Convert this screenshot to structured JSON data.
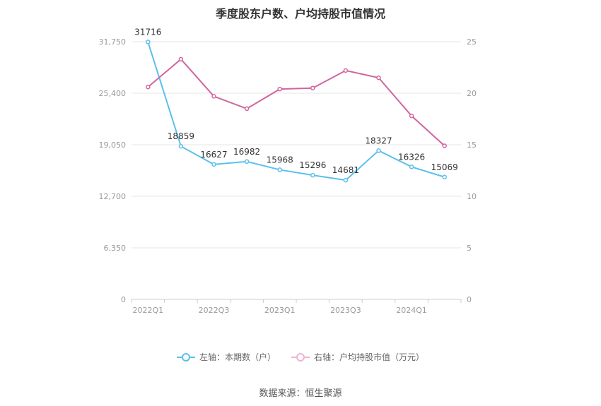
{
  "title": "季度股东户数、户均持股市值情况",
  "source": "数据来源：恒生聚源",
  "chart_data": {
    "type": "line",
    "categories": [
      "2022Q1",
      "2022Q2",
      "2022Q3",
      "2022Q4",
      "2023Q1",
      "2023Q2",
      "2023Q3",
      "2023Q4",
      "2024Q1",
      "2024Q2"
    ],
    "x_tick_labels": [
      "2022Q1",
      "",
      "2022Q3",
      "",
      "2023Q1",
      "",
      "2023Q3",
      "",
      "2024Q1",
      ""
    ],
    "left_axis": {
      "ylim": [
        0,
        31750
      ],
      "ticks": [
        0,
        6350,
        12700,
        19050,
        25400,
        31750
      ],
      "tick_labels": [
        "0",
        "6,350",
        "12,700",
        "19,050",
        "25,400",
        "31,750"
      ]
    },
    "right_axis": {
      "ylim": [
        0,
        25
      ],
      "ticks": [
        0,
        5,
        10,
        15,
        20,
        25
      ],
      "tick_labels": [
        "0",
        "5",
        "10",
        "15",
        "20",
        "25"
      ]
    },
    "series": [
      {
        "name": "左轴：本期数（户）",
        "axis": "left",
        "color": "#5bc0eb",
        "values": [
          31716,
          18859,
          16627,
          16982,
          15968,
          15296,
          14681,
          18327,
          16326,
          15069
        ],
        "labels": [
          "31716",
          "18859",
          "16627",
          "16982",
          "15968",
          "15296",
          "14681",
          "18327",
          "16326",
          "15069"
        ]
      },
      {
        "name": "右轴：户均持股市值（万元）",
        "axis": "right",
        "color": "#d2649f",
        "values": [
          20.6,
          23.3,
          19.7,
          18.5,
          20.4,
          20.5,
          22.2,
          21.5,
          17.8,
          14.9
        ]
      }
    ],
    "grid": true,
    "legend_position": "bottom"
  }
}
